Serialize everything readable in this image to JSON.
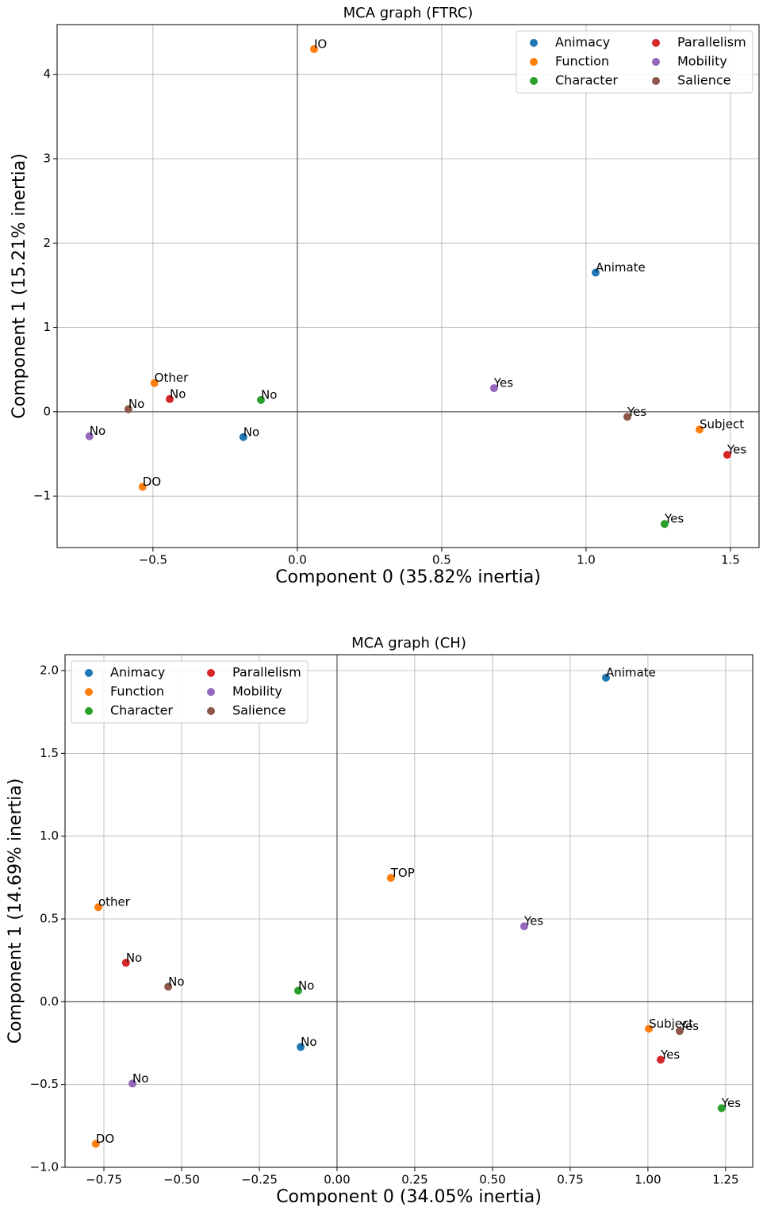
{
  "chart_data": [
    {
      "type": "scatter",
      "title": "MCA graph (FTRC)",
      "xlabel": "Component 0 (35.82% inertia)",
      "ylabel": "Component 1 (15.21% inertia)",
      "xlim": [
        -0.832,
        1.599
      ],
      "ylim": [
        -1.61,
        4.59
      ],
      "xticks": [
        {
          "value": -0.5,
          "label": "−0.5"
        },
        {
          "value": 0,
          "label": "0.0"
        },
        0.5,
        {
          "value": 1,
          "label": "1.0"
        },
        1.5
      ],
      "yticks": [
        {
          "value": -1,
          "label": "−1"
        },
        0,
        1,
        2,
        3,
        4
      ],
      "grid": true,
      "legend": "upper right",
      "series": [
        {
          "name": "Animacy",
          "color": "#1f77b4",
          "x": [
            1.033,
            -0.187
          ],
          "values": [
            1.65,
            -0.3
          ],
          "labels": [
            "Animate",
            "No"
          ]
        },
        {
          "name": "Function",
          "color": "#ff7f0e",
          "x": [
            0.058,
            -0.495,
            -0.536,
            1.393
          ],
          "values": [
            4.3,
            0.34,
            -0.89,
            -0.21
          ],
          "labels": [
            "IO",
            "Other",
            "DO",
            "Subject"
          ]
        },
        {
          "name": "Character",
          "color": "#2ca02c",
          "x": [
            -0.126,
            1.272
          ],
          "values": [
            0.14,
            -1.33
          ],
          "labels": [
            "No",
            "Yes"
          ]
        },
        {
          "name": "Parallelism",
          "color": "#d62728",
          "x": [
            -0.442,
            1.489
          ],
          "values": [
            0.15,
            -0.51
          ],
          "labels": [
            "No",
            "Yes"
          ]
        },
        {
          "name": "Mobility",
          "color": "#9467bd",
          "x": [
            -0.72,
            0.681
          ],
          "values": [
            -0.29,
            0.28
          ],
          "labels": [
            "No",
            "Yes"
          ]
        },
        {
          "name": "Salience",
          "color": "#8c564b",
          "x": [
            -0.585,
            1.143
          ],
          "values": [
            0.03,
            -0.06
          ],
          "labels": [
            "No",
            "Yes"
          ]
        }
      ]
    },
    {
      "type": "scatter",
      "title": "MCA graph (CH)",
      "xlabel": "Component 0 (34.05% inertia)",
      "ylabel": "Component 1 (14.69% inertia)",
      "xlim": [
        -0.875,
        1.337
      ],
      "ylim": [
        -1.0,
        2.096
      ],
      "xticks": [
        {
          "value": -0.75,
          "label": "−0.75"
        },
        {
          "value": -0.5,
          "label": "−0.50"
        },
        {
          "value": -0.25,
          "label": "−0.25"
        },
        {
          "value": 0,
          "label": "0.00"
        },
        0.25,
        {
          "value": 0.5,
          "label": "0.50"
        },
        0.75,
        {
          "value": 1,
          "label": "1.00"
        },
        1.25
      ],
      "yticks": [
        {
          "value": -1,
          "label": "−1.0"
        },
        {
          "value": -0.5,
          "label": "−0.5"
        },
        {
          "value": 0,
          "label": "0.0"
        },
        0.5,
        {
          "value": 1,
          "label": "1.0"
        },
        1.5,
        {
          "value": 2,
          "label": "2.0"
        }
      ],
      "grid": true,
      "legend": "upper left",
      "series": [
        {
          "name": "Animacy",
          "color": "#1f77b4",
          "x": [
            0.865,
            -0.117
          ],
          "values": [
            1.957,
            -0.273
          ],
          "labels": [
            "Animate",
            "No"
          ]
        },
        {
          "name": "Function",
          "color": "#ff7f0e",
          "x": [
            -0.768,
            -0.776,
            0.173,
            1.003
          ],
          "values": [
            0.571,
            -0.858,
            0.748,
            -0.163
          ],
          "labels": [
            "other",
            "DO",
            "TOP",
            "Subject"
          ]
        },
        {
          "name": "Character",
          "color": "#2ca02c",
          "x": [
            -0.125,
            1.237
          ],
          "values": [
            0.067,
            -0.643
          ],
          "labels": [
            "No",
            "Yes"
          ]
        },
        {
          "name": "Parallelism",
          "color": "#d62728",
          "x": [
            -0.679,
            1.041
          ],
          "values": [
            0.235,
            -0.35
          ],
          "labels": [
            "No",
            "Yes"
          ]
        },
        {
          "name": "Mobility",
          "color": "#9467bd",
          "x": [
            -0.658,
            0.602
          ],
          "values": [
            -0.494,
            0.456
          ],
          "labels": [
            "No",
            "Yes"
          ]
        },
        {
          "name": "Salience",
          "color": "#8c564b",
          "x": [
            -0.543,
            1.102
          ],
          "values": [
            0.091,
            -0.177
          ],
          "labels": [
            "No",
            "Yes"
          ]
        }
      ]
    }
  ]
}
